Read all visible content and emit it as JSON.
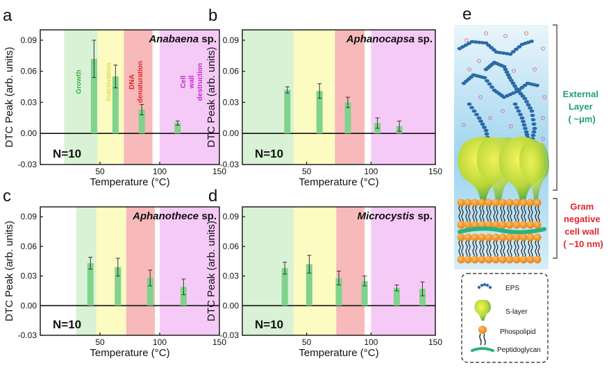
{
  "chart_data": [
    {
      "type": "bar",
      "panel_letter": "a",
      "title": "Anabaena sp.",
      "title_italic": "Anabaena",
      "title_suffix": " sp.",
      "xlabel": "Temperature (°C)",
      "ylabel": "DTC Peak (arb. units)",
      "xlim": [
        0,
        150
      ],
      "ylim": [
        -0.03,
        0.1
      ],
      "xticks": [
        "50",
        "100",
        "150"
      ],
      "yticks": [
        "-0.03",
        "0.00",
        "0.03",
        "0.06",
        "0.09"
      ],
      "n_label": "N=10",
      "regions": [
        {
          "from": 20,
          "to": 48,
          "color": "#d9f2d5",
          "label": "Growth",
          "label_color": "#3cb44b"
        },
        {
          "from": 48,
          "to": 70,
          "color": "#fbfbc2",
          "label": "Inactivation",
          "label_color": "#e8d84a"
        },
        {
          "from": 70,
          "to": 94,
          "color": "#f7b9b9",
          "label": "DNA denaturation",
          "label_color": "#e0262c"
        },
        {
          "from": 100,
          "to": 150,
          "color": "#f6caf6",
          "label": "Cell wall destruction",
          "label_color": "#c42ad0"
        }
      ],
      "x": [
        45,
        63,
        85,
        115
      ],
      "values": [
        0.072,
        0.055,
        0.023,
        0.01
      ],
      "errors": [
        0.018,
        0.011,
        0.005,
        0.002
      ],
      "bar_color": "#7fd38b"
    },
    {
      "type": "bar",
      "panel_letter": "b",
      "title": "Aphanocapsa sp.",
      "title_italic": "Aphanocapsa",
      "title_suffix": " sp.",
      "xlabel": "Temperature (°C)",
      "ylabel": "DTC Peak (arb. units)",
      "xlim": [
        0,
        150
      ],
      "ylim": [
        -0.03,
        0.1
      ],
      "xticks": [
        "50",
        "100",
        "150"
      ],
      "yticks": [
        "-0.03",
        "0.00",
        "0.03",
        "0.06",
        "0.09"
      ],
      "n_label": "N=10",
      "regions": [
        {
          "from": 0,
          "to": 40,
          "color": "#d9f2d5"
        },
        {
          "from": 40,
          "to": 72,
          "color": "#fbfbc2"
        },
        {
          "from": 72,
          "to": 95,
          "color": "#f7b9b9"
        },
        {
          "from": 100,
          "to": 150,
          "color": "#f6caf6"
        }
      ],
      "x": [
        35,
        60,
        82,
        105,
        122
      ],
      "values": [
        0.042,
        0.041,
        0.03,
        0.01,
        0.007
      ],
      "errors": [
        0.003,
        0.007,
        0.005,
        0.005,
        0.005
      ],
      "bar_color": "#7fd38b"
    },
    {
      "type": "bar",
      "panel_letter": "c",
      "title": "Aphanothece sp.",
      "title_italic": "Aphanothece",
      "title_suffix": " sp.",
      "xlabel": "Temperature (°C)",
      "ylabel": "DTC Peak (arb. units)",
      "xlim": [
        0,
        150
      ],
      "ylim": [
        -0.03,
        0.1
      ],
      "xticks": [
        "50",
        "100",
        "150"
      ],
      "yticks": [
        "-0.03",
        "0.00",
        "0.03",
        "0.06",
        "0.09"
      ],
      "n_label": "N=10",
      "regions": [
        {
          "from": 30,
          "to": 47,
          "color": "#d9f2d5"
        },
        {
          "from": 47,
          "to": 72,
          "color": "#fbfbc2"
        },
        {
          "from": 72,
          "to": 96,
          "color": "#f7b9b9"
        },
        {
          "from": 100,
          "to": 150,
          "color": "#f6caf6"
        }
      ],
      "x": [
        42,
        65,
        92,
        120
      ],
      "values": [
        0.043,
        0.039,
        0.028,
        0.019
      ],
      "errors": [
        0.006,
        0.009,
        0.008,
        0.008
      ],
      "bar_color": "#7fd38b"
    },
    {
      "type": "bar",
      "panel_letter": "d",
      "title": "Microcystis sp.",
      "title_italic": "Microcystis",
      "title_suffix": " sp.",
      "xlabel": "Temperature (°C)",
      "ylabel": "DTC Peak (arb. units)",
      "xlim": [
        0,
        150
      ],
      "ylim": [
        -0.03,
        0.1
      ],
      "xticks": [
        "50",
        "100",
        "150"
      ],
      "yticks": [
        "-0.03",
        "0.00",
        "0.03",
        "0.06",
        "0.09"
      ],
      "n_label": "N=10",
      "regions": [
        {
          "from": 0,
          "to": 40,
          "color": "#d9f2d5"
        },
        {
          "from": 40,
          "to": 73,
          "color": "#fbfbc2"
        },
        {
          "from": 73,
          "to": 95,
          "color": "#f7b9b9"
        },
        {
          "from": 100,
          "to": 150,
          "color": "#f6caf6"
        }
      ],
      "x": [
        33,
        52,
        75,
        95,
        120,
        140
      ],
      "values": [
        0.038,
        0.042,
        0.028,
        0.025,
        0.018,
        0.017
      ],
      "errors": [
        0.006,
        0.009,
        0.007,
        0.005,
        0.003,
        0.007
      ],
      "bar_color": "#7fd38b"
    }
  ],
  "diagram": {
    "panel_letter": "e",
    "external_layer_label": [
      "External",
      "Layer",
      "( ~μm)"
    ],
    "external_layer_color": "#20a070",
    "cell_wall_label": [
      "Gram",
      "negative",
      "cell wall",
      "( ~10 nm)"
    ],
    "cell_wall_color": "#e0262c",
    "legend": [
      {
        "label": "EPS",
        "icon": "eps-icon"
      },
      {
        "label": "S-layer",
        "icon": "s-layer-icon"
      },
      {
        "label": "Phospolipid",
        "icon": "phospholipid-icon"
      },
      {
        "label": "Peptidoglycan",
        "icon": "peptidoglycan-icon"
      }
    ]
  }
}
